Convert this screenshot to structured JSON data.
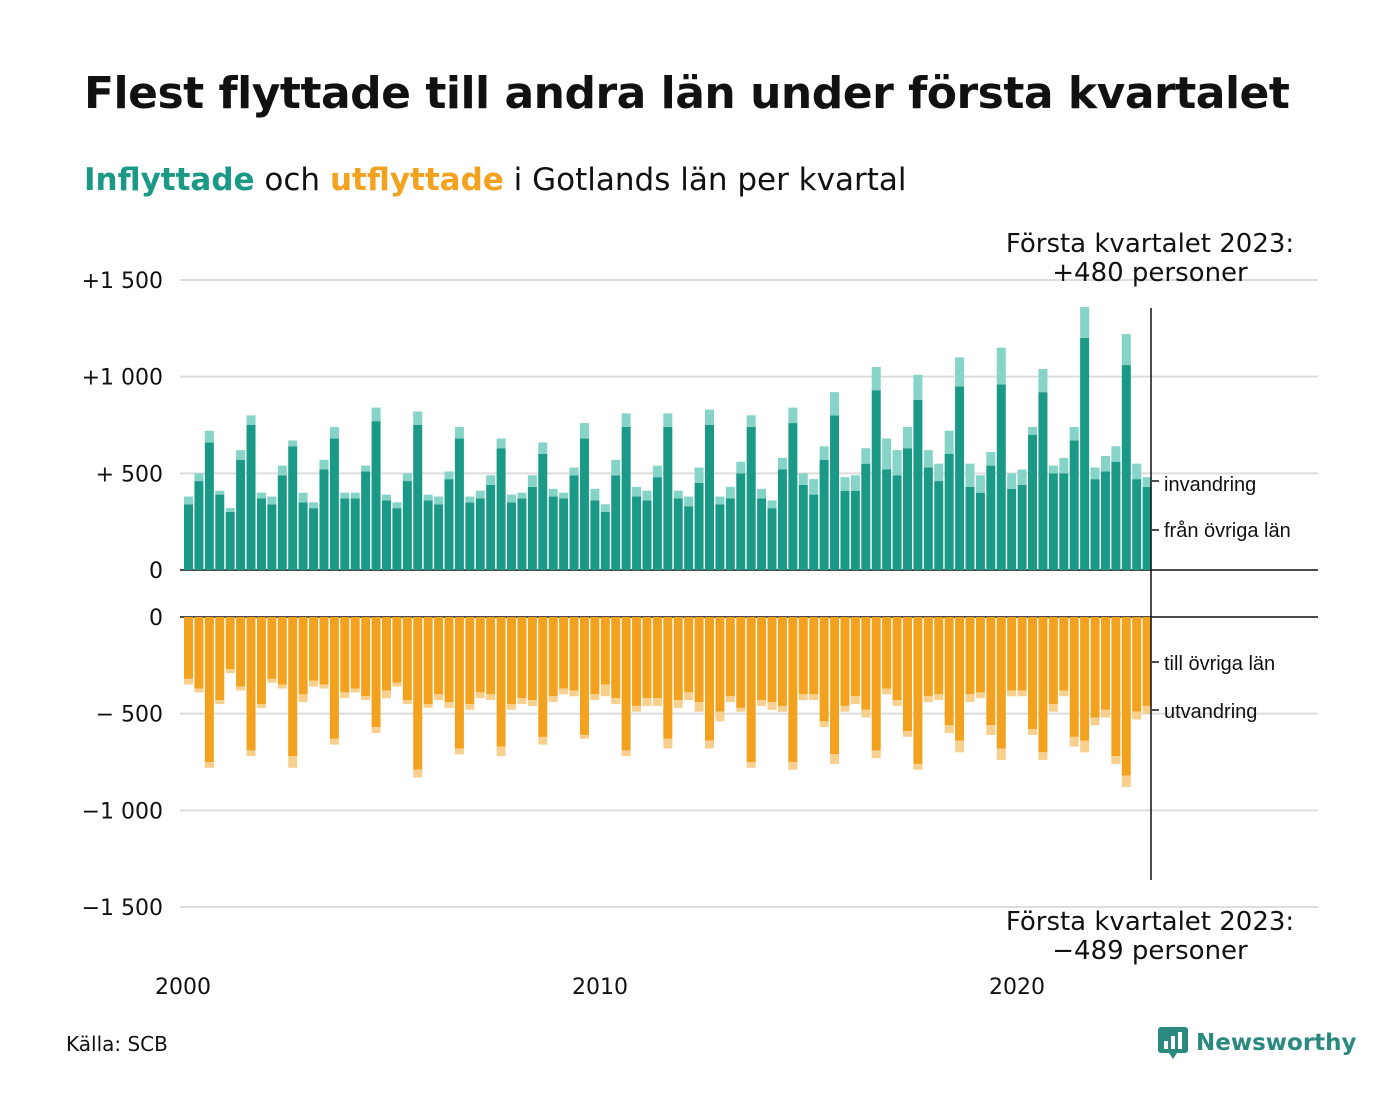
{
  "title": "Flest flyttade till andra län under första kvartalet",
  "subtitle": {
    "in_word": "Inflyttade",
    "and_word": "och",
    "out_word": "utflyttade",
    "rest": "i Gotlands län per kvartal"
  },
  "annotation_top": {
    "line1": "Första kvartalet 2023:",
    "line2": "+480 personer"
  },
  "annotation_bottom": {
    "line1": "Första kvartalet 2023:",
    "line2": "−489 personer"
  },
  "source": "Källa: SCB",
  "brand": "Newsworthy",
  "colors": {
    "in_main": "#1a9a86",
    "in_extra": "#86d4c8",
    "out_main": "#f3a21f",
    "out_extra": "#f8d08e",
    "grid": "#dddddd",
    "axis": "#111111",
    "title_in": "#1a9a86",
    "title_out": "#f3a21f",
    "brand": "#2a8a80"
  },
  "chart_data": {
    "type": "bar",
    "x_tick_labels": [
      "2000",
      "2010",
      "2020"
    ],
    "top_panel": {
      "y_tick_labels": [
        "0",
        "+  500",
        "+1 000",
        "+1 500"
      ],
      "ylim": [
        0,
        1500
      ],
      "legend_labels": [
        "invandring",
        "från övriga län"
      ],
      "series": [
        {
          "name": "från övriga län",
          "values": [
            340,
            460,
            660,
            390,
            300,
            570,
            750,
            370,
            340,
            490,
            640,
            350,
            320,
            520,
            680,
            370,
            370,
            510,
            770,
            360,
            320,
            460,
            750,
            360,
            340,
            470,
            680,
            350,
            370,
            440,
            630,
            350,
            370,
            430,
            600,
            380,
            370,
            490,
            680,
            360,
            300,
            490,
            740,
            380,
            360,
            480,
            740,
            370,
            330,
            450,
            750,
            340,
            370,
            500,
            740,
            370,
            320,
            520,
            760,
            440,
            390,
            570,
            800,
            410,
            410,
            550,
            930,
            520,
            490,
            630,
            880,
            530,
            460,
            600,
            950,
            430,
            400,
            540,
            960,
            420,
            440,
            700,
            920,
            500,
            500,
            670,
            1200,
            470,
            510,
            560,
            1060,
            470,
            430
          ]
        },
        {
          "name": "invandring",
          "values": [
            40,
            40,
            60,
            20,
            20,
            50,
            50,
            30,
            40,
            50,
            30,
            50,
            30,
            50,
            60,
            30,
            30,
            30,
            70,
            30,
            30,
            40,
            70,
            30,
            40,
            40,
            60,
            30,
            40,
            50,
            50,
            40,
            30,
            60,
            60,
            40,
            30,
            40,
            80,
            60,
            40,
            80,
            70,
            50,
            50,
            60,
            70,
            40,
            50,
            80,
            80,
            40,
            60,
            60,
            60,
            50,
            40,
            60,
            80,
            60,
            80,
            70,
            120,
            70,
            80,
            80,
            120,
            160,
            130,
            110,
            130,
            90,
            90,
            120,
            150,
            120,
            90,
            70,
            190,
            80,
            80,
            40,
            120,
            40,
            80,
            70,
            160,
            60,
            80,
            80,
            160,
            80,
            50
          ]
        }
      ]
    },
    "bottom_panel": {
      "y_tick_labels": [
        "0",
        "−  500",
        "−1 000",
        "−1 500"
      ],
      "ylim": [
        -1500,
        0
      ],
      "legend_labels": [
        "till övriga län",
        "utvandring"
      ],
      "series": [
        {
          "name": "till övriga län",
          "values": [
            -320,
            -370,
            -750,
            -430,
            -270,
            -360,
            -690,
            -450,
            -320,
            -350,
            -720,
            -400,
            -330,
            -350,
            -630,
            -390,
            -370,
            -410,
            -570,
            -380,
            -340,
            -430,
            -790,
            -450,
            -400,
            -440,
            -680,
            -450,
            -390,
            -400,
            -670,
            -450,
            -420,
            -430,
            -620,
            -410,
            -370,
            -380,
            -610,
            -400,
            -350,
            -420,
            -690,
            -460,
            -420,
            -420,
            -630,
            -430,
            -390,
            -440,
            -640,
            -490,
            -410,
            -470,
            -750,
            -430,
            -440,
            -460,
            -750,
            -400,
            -400,
            -540,
            -710,
            -460,
            -410,
            -480,
            -690,
            -370,
            -430,
            -590,
            -760,
            -410,
            -400,
            -560,
            -640,
            -400,
            -390,
            -560,
            -680,
            -380,
            -380,
            -580,
            -700,
            -450,
            -380,
            -620,
            -640,
            -520,
            -480,
            -720,
            -820,
            -490,
            -460
          ]
        },
        {
          "name": "utvandring",
          "values": [
            -30,
            -20,
            -30,
            -20,
            -20,
            -20,
            -30,
            -20,
            -20,
            -20,
            -60,
            -40,
            -30,
            -20,
            -30,
            -30,
            -20,
            -20,
            -30,
            -40,
            -20,
            -20,
            -40,
            -20,
            -30,
            -30,
            -30,
            -30,
            -30,
            -30,
            -50,
            -30,
            -30,
            -30,
            -40,
            -30,
            -30,
            -30,
            -20,
            -30,
            -60,
            -30,
            -30,
            -30,
            -40,
            -40,
            -50,
            -40,
            -40,
            -50,
            -40,
            -50,
            -30,
            -20,
            -30,
            -30,
            -40,
            -30,
            -40,
            -30,
            -30,
            -30,
            -50,
            -30,
            -40,
            -40,
            -40,
            -30,
            -30,
            -30,
            -30,
            -30,
            -30,
            -40,
            -60,
            -40,
            -30,
            -50,
            -60,
            -30,
            -30,
            -30,
            -40,
            -40,
            -30,
            -50,
            -60,
            -40,
            -40,
            -40,
            -60,
            -40,
            -40
          ]
        }
      ]
    }
  }
}
